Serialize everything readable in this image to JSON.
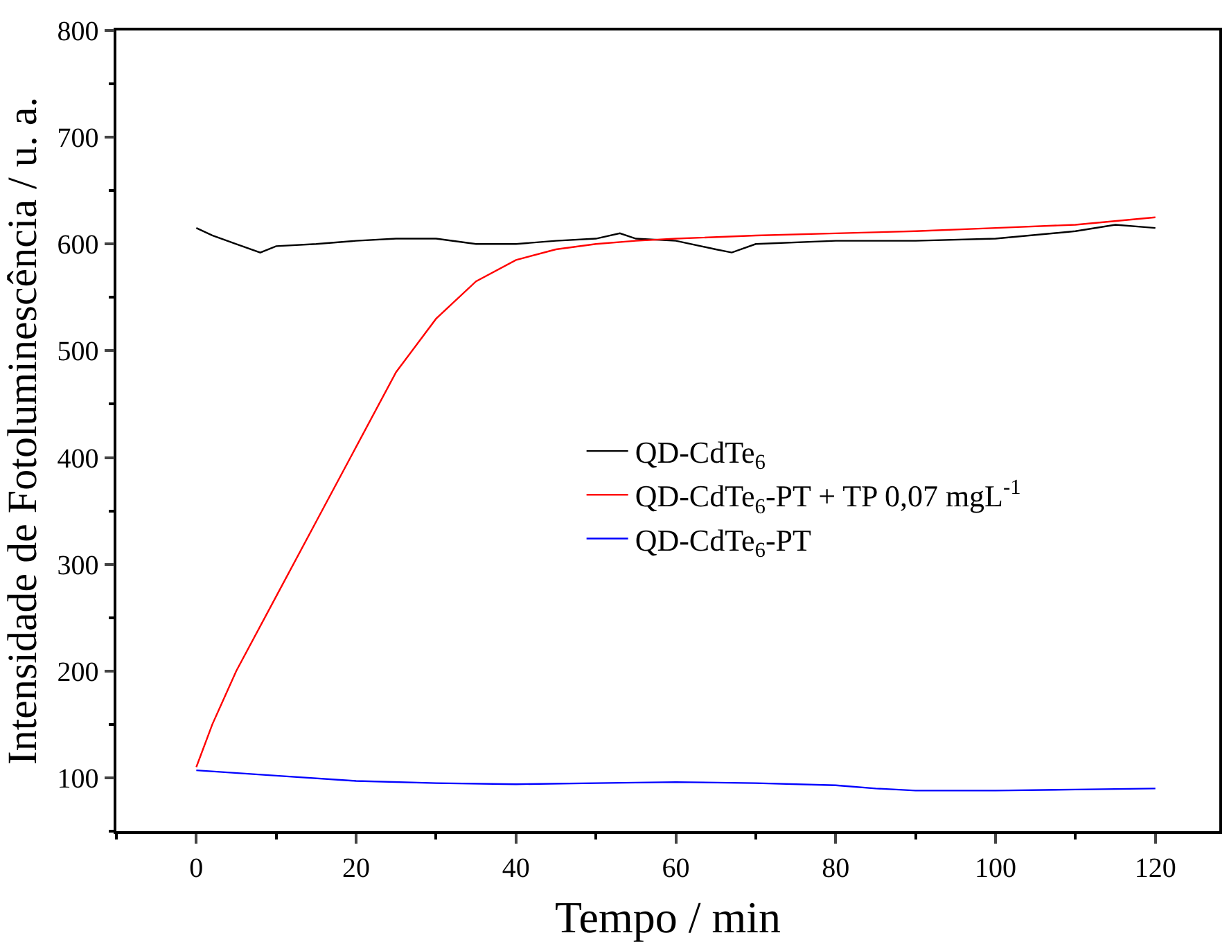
{
  "chart_data": {
    "type": "line",
    "xlabel": "Tempo / min",
    "ylabel": "Intensidade de Fotoluminescência / u. a.",
    "xlim": [
      -10,
      128
    ],
    "xticks": [
      0,
      20,
      40,
      60,
      80,
      100,
      120
    ],
    "ylim": [
      50,
      800
    ],
    "yticks": [
      100,
      200,
      300,
      400,
      500,
      600,
      700,
      800
    ],
    "legend": "right",
    "marker": "none",
    "series": [
      {
        "name": "QD-CdTe$_{6}$",
        "color": "#000000",
        "x": [
          0,
          2,
          5,
          8,
          10,
          15,
          20,
          25,
          30,
          35,
          40,
          45,
          50,
          53,
          55,
          60,
          65,
          67,
          70,
          80,
          90,
          100,
          110,
          115,
          120
        ],
        "values": [
          615,
          608,
          600,
          592,
          598,
          600,
          603,
          605,
          605,
          600,
          600,
          603,
          605,
          610,
          605,
          603,
          595,
          592,
          600,
          603,
          603,
          605,
          612,
          618,
          615
        ]
      },
      {
        "name": "QD-CdTe$_{6}$-PT + TP 0,07 mgL$^{-1}$",
        "color": "#ff0000",
        "x": [
          0,
          2,
          5,
          10,
          15,
          20,
          25,
          30,
          35,
          40,
          45,
          50,
          55,
          60,
          70,
          80,
          90,
          100,
          110,
          120
        ],
        "values": [
          110,
          150,
          200,
          270,
          340,
          410,
          480,
          530,
          565,
          585,
          595,
          600,
          603,
          605,
          608,
          610,
          612,
          615,
          618,
          625
        ]
      },
      {
        "name": "QD-CdTe$_{6}$-PT",
        "color": "#0000ff",
        "x": [
          0,
          10,
          20,
          30,
          40,
          50,
          60,
          70,
          80,
          85,
          90,
          100,
          110,
          120
        ],
        "values": [
          107,
          102,
          97,
          95,
          94,
          95,
          96,
          95,
          93,
          90,
          88,
          88,
          89,
          90
        ]
      }
    ]
  }
}
